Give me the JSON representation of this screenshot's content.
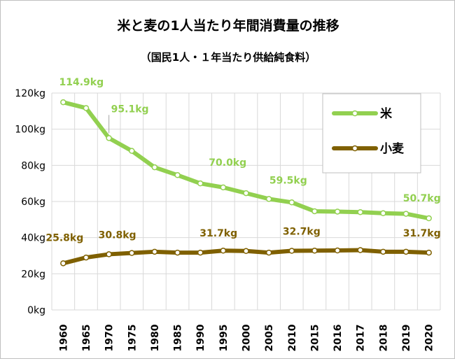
{
  "chart_data": {
    "type": "line",
    "title": "米と麦の1人当たり年間消費量の推移",
    "subtitle": "（国民1人・１年当たり供給純食料）",
    "categories": [
      "1960",
      "1965",
      "1970",
      "1975",
      "1980",
      "1985",
      "1990",
      "1995",
      "2000",
      "2005",
      "2010",
      "2015",
      "2016",
      "2017",
      "2018",
      "2019",
      "2020"
    ],
    "ylim": [
      0,
      120
    ],
    "yticks": [
      "0kg",
      "20kg",
      "40kg",
      "60kg",
      "80kg",
      "100kg",
      "120kg"
    ],
    "grid": true,
    "legend_position": "top-right",
    "series": [
      {
        "name": "米",
        "color": "#92d050",
        "values": [
          114.9,
          111.7,
          95.1,
          88.0,
          78.9,
          74.6,
          70.0,
          67.8,
          64.6,
          61.4,
          59.5,
          54.6,
          54.4,
          54.1,
          53.5,
          53.2,
          50.7
        ]
      },
      {
        "name": "小麦",
        "color": "#7f6000",
        "values": [
          25.8,
          29.0,
          30.8,
          31.5,
          32.2,
          31.7,
          31.7,
          32.8,
          32.6,
          31.7,
          32.7,
          32.8,
          32.9,
          33.1,
          32.2,
          32.2,
          31.7
        ]
      }
    ],
    "annotations": [
      {
        "series": 0,
        "index": 0,
        "text": "114.9kg"
      },
      {
        "series": 0,
        "index": 2,
        "text": "95.1kg"
      },
      {
        "series": 0,
        "index": 6,
        "text": "70.0kg"
      },
      {
        "series": 0,
        "index": 10,
        "text": "59.5kg"
      },
      {
        "series": 0,
        "index": 16,
        "text": "50.7kg"
      },
      {
        "series": 1,
        "index": 0,
        "text": "25.8kg"
      },
      {
        "series": 1,
        "index": 2,
        "text": "30.8kg"
      },
      {
        "series": 1,
        "index": 6,
        "text": "31.7kg"
      },
      {
        "series": 1,
        "index": 10,
        "text": "32.7kg"
      },
      {
        "series": 1,
        "index": 16,
        "text": "31.7kg"
      }
    ]
  }
}
